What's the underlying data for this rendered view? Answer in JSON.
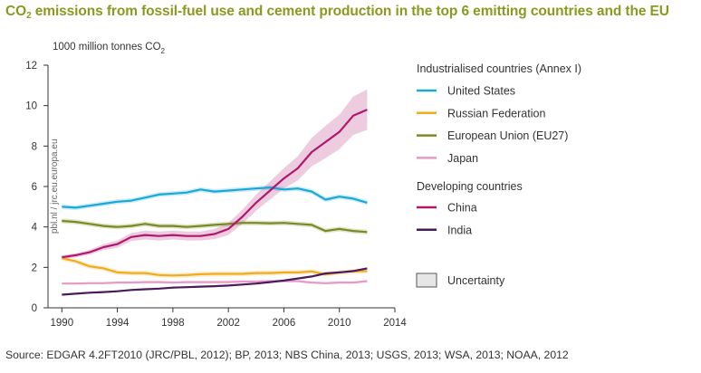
{
  "title": {
    "prefix": "CO",
    "sub": "2",
    "rest": " emissions from fossil-fuel use and cement production in the top 6 emitting countries and the EU"
  },
  "source": "Source: EDGAR 4.2FT2010 (JRC/PBL, 2012); BP, 2013; NBS China, 2013; USGS, 2013; WSA, 2013; NOAA, 2012",
  "watermark": "pbl.nl / jrc.eu.europa.eu",
  "colors": {
    "title": "#8a9a1e",
    "us": "#1aa9d6",
    "russia": "#f2ab1f",
    "eu": "#7a8a22",
    "japan": "#e69ac8",
    "china": "#b0176f",
    "india": "#4b1a5c",
    "uncertainty_fill": "#e6e6e6",
    "uncertainty_stroke": "#555555"
  },
  "chart_data": {
    "type": "line",
    "ylabel_prefix": "1000 million tonnes CO",
    "ylabel_sub": "2",
    "xlim": [
      1989,
      2014
    ],
    "ylim": [
      0,
      12
    ],
    "x_ticks": [
      1990,
      1994,
      1998,
      2002,
      2006,
      2010,
      2014
    ],
    "y_ticks": [
      0,
      2,
      4,
      6,
      8,
      10,
      12
    ],
    "x": [
      1990,
      1991,
      1992,
      1993,
      1994,
      1995,
      1996,
      1997,
      1998,
      1999,
      2000,
      2001,
      2002,
      2003,
      2004,
      2005,
      2006,
      2007,
      2008,
      2009,
      2010,
      2011,
      2012
    ],
    "series": [
      {
        "key": "us",
        "name": "United States",
        "color": "#1aa9d6",
        "band": 0.12,
        "values": [
          5.0,
          4.95,
          5.05,
          5.15,
          5.25,
          5.3,
          5.45,
          5.6,
          5.65,
          5.7,
          5.85,
          5.75,
          5.8,
          5.85,
          5.9,
          5.95,
          5.85,
          5.9,
          5.75,
          5.35,
          5.5,
          5.4,
          5.2
        ]
      },
      {
        "key": "russia",
        "name": "Russian Federation",
        "color": "#f2ab1f",
        "band": 0.12,
        "values": [
          2.45,
          2.3,
          2.05,
          1.95,
          1.75,
          1.72,
          1.72,
          1.62,
          1.6,
          1.62,
          1.66,
          1.68,
          1.68,
          1.68,
          1.72,
          1.72,
          1.75,
          1.75,
          1.8,
          1.65,
          1.75,
          1.8,
          1.82
        ]
      },
      {
        "key": "eu",
        "name": "European Union (EU27)",
        "color": "#7a8a22",
        "band": 0.12,
        "values": [
          4.3,
          4.25,
          4.15,
          4.05,
          4.0,
          4.05,
          4.15,
          4.05,
          4.05,
          4.0,
          4.05,
          4.1,
          4.15,
          4.2,
          4.2,
          4.18,
          4.2,
          4.15,
          4.1,
          3.8,
          3.9,
          3.8,
          3.75
        ]
      },
      {
        "key": "japan",
        "name": "Japan",
        "color": "#e69ac8",
        "band": 0.06,
        "values": [
          1.2,
          1.2,
          1.22,
          1.22,
          1.25,
          1.25,
          1.27,
          1.27,
          1.25,
          1.27,
          1.27,
          1.27,
          1.27,
          1.3,
          1.3,
          1.32,
          1.32,
          1.32,
          1.25,
          1.22,
          1.25,
          1.25,
          1.32
        ]
      },
      {
        "key": "china",
        "name": "China",
        "color": "#b0176f",
        "band": [
          0.1,
          0.1,
          0.12,
          0.15,
          0.18,
          0.2,
          0.22,
          0.22,
          0.22,
          0.22,
          0.22,
          0.25,
          0.3,
          0.35,
          0.4,
          0.45,
          0.5,
          0.6,
          0.7,
          0.8,
          0.85,
          0.95,
          1.0
        ],
        "values": [
          2.5,
          2.6,
          2.75,
          3.0,
          3.15,
          3.5,
          3.6,
          3.55,
          3.6,
          3.55,
          3.55,
          3.65,
          3.9,
          4.5,
          5.2,
          5.8,
          6.4,
          6.9,
          7.7,
          8.2,
          8.7,
          9.5,
          9.8
        ]
      },
      {
        "key": "india",
        "name": "India",
        "color": "#4b1a5c",
        "band": 0.04,
        "values": [
          0.65,
          0.7,
          0.75,
          0.78,
          0.82,
          0.88,
          0.92,
          0.95,
          1.0,
          1.02,
          1.05,
          1.07,
          1.1,
          1.15,
          1.2,
          1.27,
          1.35,
          1.45,
          1.55,
          1.7,
          1.75,
          1.82,
          1.95
        ]
      }
    ],
    "legend": {
      "placement": "right",
      "group1": "Industrialised countries (Annex I)",
      "group2": "Developing countries",
      "uncertainty": "Uncertainty"
    }
  }
}
